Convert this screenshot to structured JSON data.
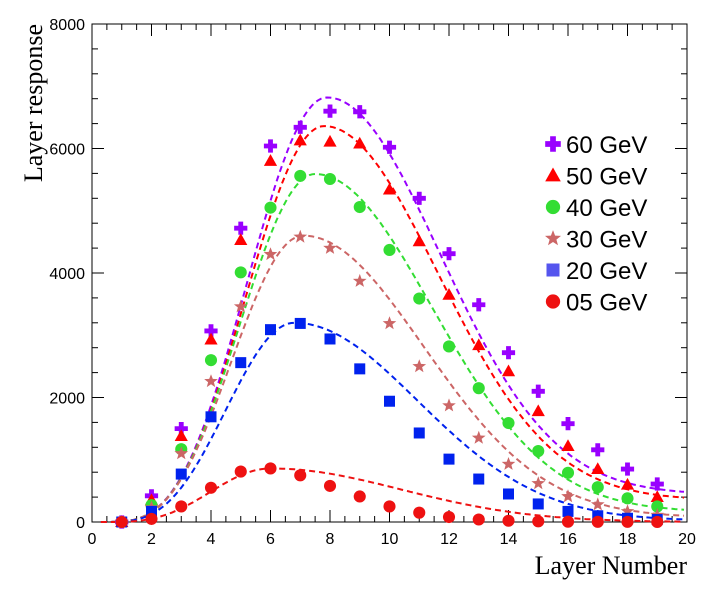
{
  "chart_data": {
    "type": "scatter",
    "xlabel": "Layer Number",
    "ylabel": "Layer response",
    "xlim": [
      0,
      20
    ],
    "ylim": [
      0,
      8000
    ],
    "x_major_ticks": [
      0,
      2,
      4,
      6,
      8,
      10,
      12,
      14,
      16,
      18,
      20
    ],
    "y_major_ticks": [
      0,
      2000,
      4000,
      6000,
      8000
    ],
    "grid": false,
    "legend_position": "right",
    "series": [
      {
        "name": "60 GeV",
        "color": "#9900ff",
        "marker": "cross",
        "x": [
          1,
          2,
          3,
          4,
          5,
          6,
          7,
          8,
          9,
          10,
          11,
          12,
          13,
          14,
          15,
          16,
          17,
          18,
          19
        ],
        "y": [
          0,
          420,
          1500,
          3070,
          4720,
          6040,
          6340,
          6600,
          6590,
          6020,
          5200,
          4310,
          3490,
          2720,
          2100,
          1580,
          1160,
          850,
          610
        ],
        "fit_peak": 6820,
        "fit_peak_x": 7.9,
        "fit_end": 440
      },
      {
        "name": "50 GeV",
        "color": "#ff0000",
        "marker": "triangle",
        "x": [
          1,
          2,
          3,
          4,
          5,
          6,
          7,
          8,
          9,
          10,
          11,
          12,
          13,
          14,
          15,
          16,
          17,
          18,
          19
        ],
        "y": [
          0,
          350,
          1380,
          2930,
          4530,
          5800,
          6130,
          6110,
          6080,
          5340,
          4510,
          3650,
          2840,
          2420,
          1780,
          1220,
          850,
          600,
          400
        ],
        "fit_peak": 6360,
        "fit_peak_x": 7.8,
        "fit_end": 350
      },
      {
        "name": "40 GeV",
        "color": "#33dd33",
        "marker": "circle",
        "x": [
          1,
          2,
          3,
          4,
          5,
          6,
          7,
          8,
          9,
          10,
          11,
          12,
          13,
          14,
          15,
          16,
          17,
          18,
          19
        ],
        "y": [
          0,
          270,
          1170,
          2600,
          4010,
          5050,
          5560,
          5510,
          5060,
          4370,
          3590,
          2820,
          2150,
          1590,
          1140,
          790,
          560,
          380,
          250
        ],
        "fit_peak": 5590,
        "fit_peak_x": 7.5,
        "fit_end": 160
      },
      {
        "name": "30 GeV",
        "color": "#cc6666",
        "marker": "star",
        "x": [
          1,
          2,
          3,
          4,
          5,
          6,
          7,
          8,
          9,
          10,
          11,
          12,
          13,
          14,
          15,
          16,
          17,
          18,
          19
        ],
        "y": [
          0,
          230,
          1100,
          2260,
          3460,
          4300,
          4580,
          4400,
          3870,
          3190,
          2500,
          1870,
          1350,
          930,
          620,
          410,
          280,
          170,
          110
        ],
        "fit_peak": 4600,
        "fit_peak_x": 7.1,
        "fit_end": 70
      },
      {
        "name": "20 GeV",
        "color": "#0022ee",
        "marker": "square",
        "legend_color": "#5555ee",
        "x": [
          1,
          2,
          3,
          4,
          5,
          6,
          7,
          8,
          9,
          10,
          11,
          12,
          13,
          14,
          15,
          16,
          17,
          18,
          19
        ],
        "y": [
          0,
          170,
          770,
          1690,
          2560,
          3090,
          3190,
          2940,
          2460,
          1940,
          1430,
          1010,
          690,
          450,
          290,
          170,
          100,
          60,
          40
        ],
        "fit_peak": 3200,
        "fit_peak_x": 6.8,
        "fit_end": 20
      },
      {
        "name": "05 GeV",
        "color": "#ee1111",
        "marker": "circle",
        "x": [
          1,
          2,
          3,
          4,
          5,
          6,
          7,
          8,
          9,
          10,
          11,
          12,
          13,
          14,
          15,
          16,
          17,
          18,
          19
        ],
        "y": [
          0,
          50,
          250,
          550,
          810,
          860,
          750,
          580,
          410,
          250,
          150,
          80,
          40,
          20,
          10,
          5,
          3,
          2,
          1
        ],
        "fit_peak": 860,
        "fit_peak_x": 6.0,
        "fit_end": 0
      }
    ]
  }
}
